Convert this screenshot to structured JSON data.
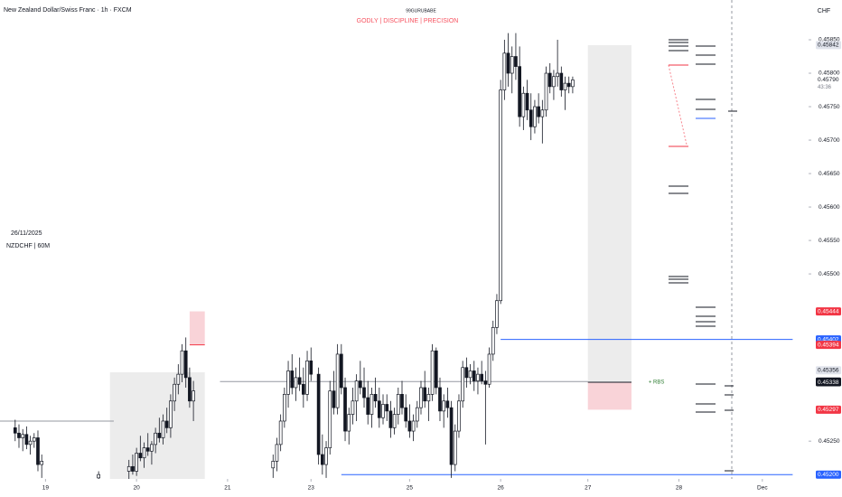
{
  "chart_data": {
    "type": "candlestick",
    "title": "New Zealand Dollar/Swiss Franc · 1h · FXCM",
    "author": "99GURUBABE",
    "tagline": "GODLY  |  DISCIPLINE  |  PRECISION",
    "date_label": "26/11/2025",
    "symbol_label": "NZDCHF | 60M",
    "currency": "CHF",
    "annotation": {
      "text": "+ RBS",
      "x": 171,
      "value": 0.45338,
      "color": "#2e7d32"
    },
    "up_color": "#ffffff",
    "down_color": "#131722",
    "ylim": [
      0.4518,
      0.459
    ],
    "yticks": [
      {
        "value": 0.4585,
        "label": "0.45850"
      },
      {
        "value": 0.458,
        "label": "0.45800"
      },
      {
        "value": 0.4575,
        "label": "0.45750"
      },
      {
        "value": 0.457,
        "label": "0.45700"
      },
      {
        "value": 0.4565,
        "label": "0.45650"
      },
      {
        "value": 0.456,
        "label": "0.45600"
      },
      {
        "value": 0.4555,
        "label": "0.45550"
      },
      {
        "value": 0.455,
        "label": "0.45500"
      },
      {
        "value": 0.4525,
        "label": "0.45250"
      }
    ],
    "xlim": [
      0,
      212
    ],
    "xticks": [
      {
        "value": 12,
        "label": "19"
      },
      {
        "value": 36,
        "label": "20"
      },
      {
        "value": 60,
        "label": "21"
      },
      {
        "value": 82,
        "label": "23"
      },
      {
        "value": 108,
        "label": "25"
      },
      {
        "value": 132,
        "label": "26"
      },
      {
        "value": 155,
        "label": "27"
      },
      {
        "value": 179,
        "label": "28"
      },
      {
        "value": 201,
        "label": "Dec"
      }
    ],
    "candles": [
      {
        "x": 4,
        "open": 0.4527,
        "high": 0.45282,
        "low": 0.4525,
        "close": 0.45262
      },
      {
        "x": 5,
        "open": 0.45262,
        "high": 0.45275,
        "low": 0.4524,
        "close": 0.45255
      },
      {
        "x": 6,
        "open": 0.45255,
        "high": 0.45268,
        "low": 0.45235,
        "close": 0.4526
      },
      {
        "x": 7,
        "open": 0.4526,
        "high": 0.45272,
        "low": 0.45238,
        "close": 0.45245
      },
      {
        "x": 8,
        "open": 0.45245,
        "high": 0.45258,
        "low": 0.4523,
        "close": 0.4525
      },
      {
        "x": 9,
        "open": 0.4525,
        "high": 0.45262,
        "low": 0.4524,
        "close": 0.45255
      },
      {
        "x": 10,
        "open": 0.45255,
        "high": 0.45266,
        "low": 0.45205,
        "close": 0.45215
      },
      {
        "x": 11,
        "open": 0.45215,
        "high": 0.4523,
        "low": 0.45195,
        "close": 0.4522
      },
      {
        "x": 26,
        "open": 0.45195,
        "high": 0.45205,
        "low": 0.45185,
        "close": 0.452
      },
      {
        "x": 34,
        "open": 0.45205,
        "high": 0.45222,
        "low": 0.4519,
        "close": 0.45212
      },
      {
        "x": 35,
        "open": 0.45212,
        "high": 0.4523,
        "low": 0.452,
        "close": 0.45205
      },
      {
        "x": 36,
        "open": 0.45205,
        "high": 0.4524,
        "low": 0.45198,
        "close": 0.45232
      },
      {
        "x": 37,
        "open": 0.45232,
        "high": 0.45258,
        "low": 0.4522,
        "close": 0.45225
      },
      {
        "x": 38,
        "open": 0.45225,
        "high": 0.45248,
        "low": 0.4521,
        "close": 0.4524
      },
      {
        "x": 39,
        "open": 0.4524,
        "high": 0.45262,
        "low": 0.45228,
        "close": 0.45235
      },
      {
        "x": 40,
        "open": 0.45235,
        "high": 0.4525,
        "low": 0.45215,
        "close": 0.45245
      },
      {
        "x": 41,
        "open": 0.45245,
        "high": 0.4527,
        "low": 0.45232,
        "close": 0.45262
      },
      {
        "x": 42,
        "open": 0.45262,
        "high": 0.45285,
        "low": 0.45248,
        "close": 0.45255
      },
      {
        "x": 43,
        "open": 0.45255,
        "high": 0.4529,
        "low": 0.45245,
        "close": 0.4528
      },
      {
        "x": 44,
        "open": 0.4528,
        "high": 0.453,
        "low": 0.45262,
        "close": 0.4527
      },
      {
        "x": 45,
        "open": 0.4527,
        "high": 0.4532,
        "low": 0.45255,
        "close": 0.4531
      },
      {
        "x": 46,
        "open": 0.4531,
        "high": 0.45345,
        "low": 0.45295,
        "close": 0.45335
      },
      {
        "x": 47,
        "open": 0.45335,
        "high": 0.45365,
        "low": 0.4532,
        "close": 0.4535
      },
      {
        "x": 48,
        "open": 0.4535,
        "high": 0.45395,
        "low": 0.45338,
        "close": 0.45385
      },
      {
        "x": 49,
        "open": 0.45385,
        "high": 0.45405,
        "low": 0.4533,
        "close": 0.45345
      },
      {
        "x": 50,
        "open": 0.45345,
        "high": 0.4536,
        "low": 0.453,
        "close": 0.4531
      },
      {
        "x": 51,
        "open": 0.4531,
        "high": 0.4534,
        "low": 0.4528,
        "close": 0.45325
      },
      {
        "x": 72,
        "open": 0.4521,
        "high": 0.4523,
        "low": 0.45195,
        "close": 0.4522
      },
      {
        "x": 73,
        "open": 0.4522,
        "high": 0.45255,
        "low": 0.45205,
        "close": 0.45245
      },
      {
        "x": 74,
        "open": 0.45245,
        "high": 0.4529,
        "low": 0.45235,
        "close": 0.4528
      },
      {
        "x": 75,
        "open": 0.4528,
        "high": 0.4533,
        "low": 0.4527,
        "close": 0.4532
      },
      {
        "x": 76,
        "open": 0.4532,
        "high": 0.4537,
        "low": 0.453,
        "close": 0.45355
      },
      {
        "x": 77,
        "open": 0.45355,
        "high": 0.4538,
        "low": 0.4532,
        "close": 0.4533
      },
      {
        "x": 78,
        "open": 0.4533,
        "high": 0.4536,
        "low": 0.4531,
        "close": 0.45345
      },
      {
        "x": 79,
        "open": 0.45345,
        "high": 0.45375,
        "low": 0.45325,
        "close": 0.45335
      },
      {
        "x": 80,
        "open": 0.45335,
        "high": 0.4536,
        "low": 0.453,
        "close": 0.4532
      },
      {
        "x": 81,
        "open": 0.4532,
        "high": 0.45385,
        "low": 0.4531,
        "close": 0.4537
      },
      {
        "x": 82,
        "open": 0.4537,
        "high": 0.4539,
        "low": 0.4534,
        "close": 0.4535
      },
      {
        "x": 84,
        "open": 0.4535,
        "high": 0.4536,
        "low": 0.45215,
        "close": 0.4523
      },
      {
        "x": 85,
        "open": 0.4523,
        "high": 0.4526,
        "low": 0.452,
        "close": 0.45215
      },
      {
        "x": 86,
        "open": 0.45215,
        "high": 0.4525,
        "low": 0.45195,
        "close": 0.4524
      },
      {
        "x": 87,
        "open": 0.4524,
        "high": 0.4534,
        "low": 0.4523,
        "close": 0.45325
      },
      {
        "x": 88,
        "open": 0.45325,
        "high": 0.45355,
        "low": 0.4529,
        "close": 0.453
      },
      {
        "x": 89,
        "open": 0.453,
        "high": 0.45395,
        "low": 0.4529,
        "close": 0.4538
      },
      {
        "x": 90,
        "open": 0.4538,
        "high": 0.45395,
        "low": 0.4532,
        "close": 0.4533
      },
      {
        "x": 91,
        "open": 0.4533,
        "high": 0.45345,
        "low": 0.4525,
        "close": 0.45265
      },
      {
        "x": 92,
        "open": 0.45265,
        "high": 0.453,
        "low": 0.45245,
        "close": 0.4529
      },
      {
        "x": 93,
        "open": 0.4529,
        "high": 0.4533,
        "low": 0.45275,
        "close": 0.4531
      },
      {
        "x": 94,
        "open": 0.4531,
        "high": 0.4535,
        "low": 0.4528,
        "close": 0.4534
      },
      {
        "x": 95,
        "open": 0.4534,
        "high": 0.4537,
        "low": 0.4532,
        "close": 0.4533
      },
      {
        "x": 96,
        "open": 0.4533,
        "high": 0.4536,
        "low": 0.453,
        "close": 0.45315
      },
      {
        "x": 97,
        "open": 0.45315,
        "high": 0.4534,
        "low": 0.45275,
        "close": 0.4529
      },
      {
        "x": 98,
        "open": 0.4529,
        "high": 0.4533,
        "low": 0.4527,
        "close": 0.4532
      },
      {
        "x": 99,
        "open": 0.4532,
        "high": 0.45345,
        "low": 0.453,
        "close": 0.4531
      },
      {
        "x": 100,
        "open": 0.4531,
        "high": 0.4533,
        "low": 0.4527,
        "close": 0.45285
      },
      {
        "x": 101,
        "open": 0.45285,
        "high": 0.4532,
        "low": 0.45275,
        "close": 0.45305
      },
      {
        "x": 102,
        "open": 0.45305,
        "high": 0.4532,
        "low": 0.4528,
        "close": 0.45295
      },
      {
        "x": 103,
        "open": 0.45295,
        "high": 0.4531,
        "low": 0.45255,
        "close": 0.4527
      },
      {
        "x": 104,
        "open": 0.4527,
        "high": 0.453,
        "low": 0.4526,
        "close": 0.4529
      },
      {
        "x": 105,
        "open": 0.4529,
        "high": 0.4533,
        "low": 0.45275,
        "close": 0.4532
      },
      {
        "x": 106,
        "open": 0.4532,
        "high": 0.4534,
        "low": 0.4529,
        "close": 0.453
      },
      {
        "x": 107,
        "open": 0.453,
        "high": 0.4532,
        "low": 0.4527,
        "close": 0.4528
      },
      {
        "x": 108,
        "open": 0.4528,
        "high": 0.45305,
        "low": 0.45255,
        "close": 0.45265
      },
      {
        "x": 109,
        "open": 0.45265,
        "high": 0.4529,
        "low": 0.4525,
        "close": 0.4528
      },
      {
        "x": 110,
        "open": 0.4528,
        "high": 0.4531,
        "low": 0.4527,
        "close": 0.453
      },
      {
        "x": 111,
        "open": 0.453,
        "high": 0.4534,
        "low": 0.4529,
        "close": 0.4533
      },
      {
        "x": 112,
        "open": 0.4533,
        "high": 0.45355,
        "low": 0.453,
        "close": 0.4531
      },
      {
        "x": 113,
        "open": 0.4531,
        "high": 0.4533,
        "low": 0.4528,
        "close": 0.4532
      },
      {
        "x": 114,
        "open": 0.4532,
        "high": 0.45395,
        "low": 0.4531,
        "close": 0.45385
      },
      {
        "x": 115,
        "open": 0.45385,
        "high": 0.4539,
        "low": 0.4532,
        "close": 0.4533
      },
      {
        "x": 116,
        "open": 0.4533,
        "high": 0.45345,
        "low": 0.4528,
        "close": 0.45295
      },
      {
        "x": 117,
        "open": 0.45295,
        "high": 0.4532,
        "low": 0.4527,
        "close": 0.4531
      },
      {
        "x": 118,
        "open": 0.4531,
        "high": 0.4533,
        "low": 0.45285,
        "close": 0.453
      },
      {
        "x": 119,
        "open": 0.453,
        "high": 0.4531,
        "low": 0.45195,
        "close": 0.45215
      },
      {
        "x": 120,
        "open": 0.45215,
        "high": 0.45275,
        "low": 0.45205,
        "close": 0.45265
      },
      {
        "x": 121,
        "open": 0.45265,
        "high": 0.4532,
        "low": 0.45255,
        "close": 0.4531
      },
      {
        "x": 122,
        "open": 0.4531,
        "high": 0.4537,
        "low": 0.453,
        "close": 0.4536
      },
      {
        "x": 123,
        "open": 0.4536,
        "high": 0.45375,
        "low": 0.4533,
        "close": 0.45345
      },
      {
        "x": 124,
        "open": 0.45345,
        "high": 0.45365,
        "low": 0.45335,
        "close": 0.45355
      },
      {
        "x": 125,
        "open": 0.45355,
        "high": 0.4537,
        "low": 0.45325,
        "close": 0.4534
      },
      {
        "x": 126,
        "open": 0.4534,
        "high": 0.4536,
        "low": 0.4532,
        "close": 0.4535
      },
      {
        "x": 127,
        "open": 0.4535,
        "high": 0.4537,
        "low": 0.45335,
        "close": 0.4534
      },
      {
        "x": 128,
        "open": 0.4534,
        "high": 0.45355,
        "low": 0.45245,
        "close": 0.45335
      },
      {
        "x": 129,
        "open": 0.45335,
        "high": 0.4539,
        "low": 0.4533,
        "close": 0.4538
      },
      {
        "x": 130,
        "open": 0.4538,
        "high": 0.4543,
        "low": 0.4537,
        "close": 0.4542
      },
      {
        "x": 131,
        "open": 0.4542,
        "high": 0.4547,
        "low": 0.4541,
        "close": 0.4546
      },
      {
        "x": 132,
        "open": 0.4546,
        "high": 0.4579,
        "low": 0.45455,
        "close": 0.45775
      },
      {
        "x": 133,
        "open": 0.45775,
        "high": 0.4585,
        "low": 0.4576,
        "close": 0.4583
      },
      {
        "x": 134,
        "open": 0.4583,
        "high": 0.4586,
        "low": 0.4578,
        "close": 0.458
      },
      {
        "x": 135,
        "open": 0.458,
        "high": 0.4584,
        "low": 0.4577,
        "close": 0.45825
      },
      {
        "x": 136,
        "open": 0.45825,
        "high": 0.4586,
        "low": 0.4579,
        "close": 0.4581
      },
      {
        "x": 137,
        "open": 0.4581,
        "high": 0.4584,
        "low": 0.4572,
        "close": 0.45735
      },
      {
        "x": 138,
        "open": 0.45735,
        "high": 0.4578,
        "low": 0.45715,
        "close": 0.4577
      },
      {
        "x": 139,
        "open": 0.4577,
        "high": 0.4579,
        "low": 0.4573,
        "close": 0.45745
      },
      {
        "x": 140,
        "open": 0.45745,
        "high": 0.4577,
        "low": 0.457,
        "close": 0.4572
      },
      {
        "x": 141,
        "open": 0.4572,
        "high": 0.4576,
        "low": 0.4571,
        "close": 0.4575
      },
      {
        "x": 142,
        "open": 0.4575,
        "high": 0.4577,
        "low": 0.45725,
        "close": 0.45735
      },
      {
        "x": 143,
        "open": 0.45735,
        "high": 0.4576,
        "low": 0.45695,
        "close": 0.45745
      },
      {
        "x": 144,
        "open": 0.45745,
        "high": 0.4581,
        "low": 0.45735,
        "close": 0.458
      },
      {
        "x": 145,
        "open": 0.458,
        "high": 0.45815,
        "low": 0.4577,
        "close": 0.4578
      },
      {
        "x": 146,
        "open": 0.4578,
        "high": 0.45805,
        "low": 0.4576,
        "close": 0.45795
      },
      {
        "x": 147,
        "open": 0.45795,
        "high": 0.4585,
        "low": 0.4578,
        "close": 0.458
      },
      {
        "x": 148,
        "open": 0.458,
        "high": 0.4581,
        "low": 0.45765,
        "close": 0.45775
      },
      {
        "x": 149,
        "open": 0.45775,
        "high": 0.45795,
        "low": 0.45745,
        "close": 0.45785
      },
      {
        "x": 150,
        "open": 0.45785,
        "high": 0.45795,
        "low": 0.4577,
        "close": 0.4578
      },
      {
        "x": 151,
        "open": 0.4578,
        "high": 0.45795,
        "low": 0.4577,
        "close": 0.4579
      }
    ],
    "zones": [
      {
        "from": 29,
        "to": 54,
        "top": 0.45353,
        "bottom": 0.4518,
        "color": "#ececec"
      },
      {
        "from": 50,
        "to": 54,
        "top": 0.45444,
        "bottom": 0.45394,
        "color": "#f9d3d8"
      },
      {
        "from": 155,
        "to": 166.5,
        "top": 0.45842,
        "bottom": 0.45338,
        "color": "#ececec"
      },
      {
        "from": 155,
        "to": 166.5,
        "top": 0.45338,
        "bottom": 0.45297,
        "color": "#f9d3d8"
      }
    ],
    "levels": [
      {
        "value": 0.4528,
        "from": 0,
        "to": 30,
        "color": "#9598a1"
      },
      {
        "value": 0.45339,
        "from": 58,
        "to": 155,
        "color": "#9598a1"
      },
      {
        "value": 0.45338,
        "from": 155,
        "to": 166.5,
        "color": "#131722"
      },
      {
        "value": 0.45402,
        "from": 132,
        "to": 209,
        "color": "#2962ff"
      },
      {
        "value": 0.452,
        "from": 90,
        "to": 209,
        "color": "#2962ff"
      },
      {
        "value": 0.45394,
        "from": 50,
        "to": 54,
        "color": "#f23645"
      }
    ],
    "price_tags": [
      {
        "value": 0.45842,
        "color": "#e0e3eb",
        "text_color": "#131722"
      },
      {
        "value": 0.4579,
        "label": "0.45790",
        "countdown": "43:36",
        "color": "#ffffff",
        "text_color": "#131722"
      },
      {
        "value": 0.45444,
        "color": "#f23645",
        "text_color": "#ffffff"
      },
      {
        "value": 0.45402,
        "color": "#2962ff",
        "text_color": "#ffffff"
      },
      {
        "value": 0.45394,
        "color": "#f23645",
        "text_color": "#ffffff"
      },
      {
        "value": 0.45356,
        "color": "#e0e3eb",
        "text_color": "#131722"
      },
      {
        "value": 0.45339,
        "color": "#131722",
        "text_color": "#ffffff"
      },
      {
        "value": 0.45338,
        "color": "#131722",
        "text_color": "#ffffff"
      },
      {
        "value": 0.45297,
        "color": "#f23645",
        "text_color": "#ffffff"
      },
      {
        "value": 0.452,
        "label": "0.45200",
        "color": "#2962ff",
        "text_color": "#ffffff"
      }
    ]
  }
}
